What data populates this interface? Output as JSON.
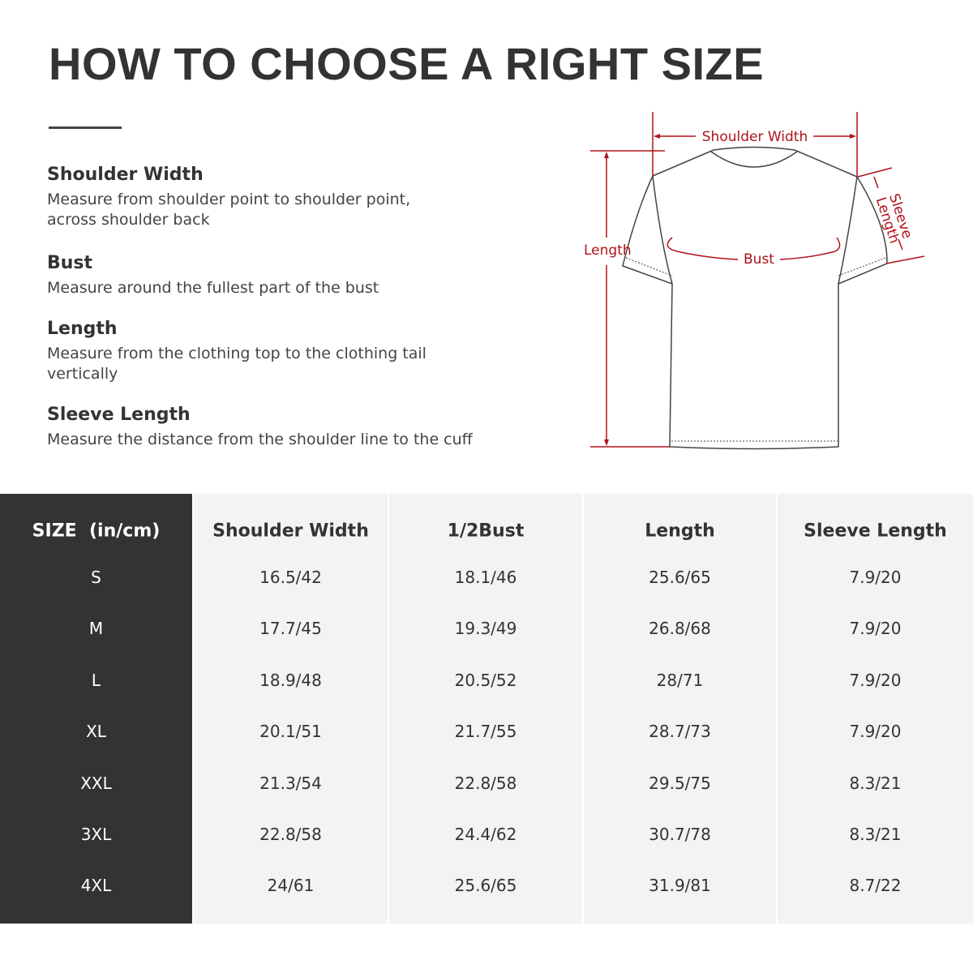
{
  "title": "HOW TO CHOOSE A RIGHT SIZE",
  "definitions": [
    {
      "term": "Shoulder Width",
      "desc": "Measure from shoulder point to shoulder point, across shoulder back"
    },
    {
      "term": "Bust",
      "desc": "Measure around the fullest part of the bust"
    },
    {
      "term": "Length",
      "desc": "Measure from the clothing top to the clothing tail vertically"
    },
    {
      "term": "Sleeve Length",
      "desc": "Measure the distance from the shoulder line to the cuff"
    }
  ],
  "diagram": {
    "labels": {
      "shoulder": "Shoulder Width",
      "length": "Length",
      "bust": "Bust",
      "sleeve1": "Sleeve",
      "sleeve2": "Length"
    },
    "line_color": "#b0121b"
  },
  "table": {
    "headers": [
      "SIZE  (in/cm)",
      "Shoulder Width",
      "1/2Bust",
      "Length",
      "Sleeve Length"
    ],
    "rows": [
      [
        "S",
        "16.5/42",
        "18.1/46",
        "25.6/65",
        "7.9/20"
      ],
      [
        "M",
        "17.7/45",
        "19.3/49",
        "26.8/68",
        "7.9/20"
      ],
      [
        "L",
        "18.9/48",
        "20.5/52",
        "28/71",
        "7.9/20"
      ],
      [
        "XL",
        "20.1/51",
        "21.7/55",
        "28.7/73",
        "7.9/20"
      ],
      [
        "XXL",
        "21.3/54",
        "22.8/58",
        "29.5/75",
        "8.3/21"
      ],
      [
        "3XL",
        "22.8/58",
        "24.4/62",
        "30.7/78",
        "8.3/21"
      ],
      [
        "4XL",
        "24/61",
        "25.6/65",
        "31.9/81",
        "8.7/22"
      ]
    ]
  }
}
